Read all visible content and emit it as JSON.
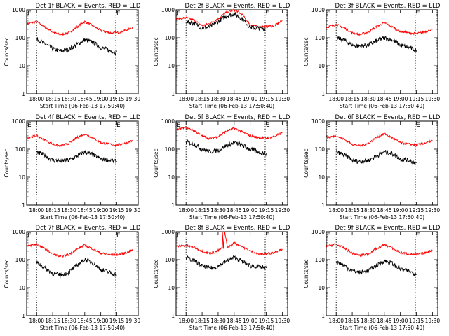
{
  "figure": {
    "common": {
      "ylabel": "Counts/sec",
      "xlabel": "Start Time (06-Feb-13 17:50:40)",
      "y_ticks": [
        "1",
        "10",
        "100",
        "1000"
      ],
      "x_ticks": [
        "18:00",
        "18:15",
        "18:30",
        "18:45",
        "19:00",
        "19:15",
        "19:30"
      ],
      "markers": {
        "left": "E",
        "right": "E"
      },
      "colors": {
        "events": "#000000",
        "lld": "#ff0000"
      }
    }
  },
  "chart_data": [
    {
      "type": "line",
      "detector": "1f",
      "title": "Det 1f BLACK = Events, RED = LLD",
      "ylabel": "Counts/sec",
      "xlabel": "Start Time (06-Feb-13 17:50:40)",
      "y_scale": "log",
      "ylim": [
        1,
        1000
      ],
      "xlim": [
        "17:50:40",
        "19:35:00"
      ],
      "dotted_verticals": [
        "18:00",
        "19:14"
      ],
      "series": [
        {
          "name": "LLD",
          "color": "#ff0000",
          "x": [
            "17:51",
            "18:00",
            "18:08",
            "18:15",
            "18:22",
            "18:30",
            "18:37",
            "18:45",
            "18:52",
            "19:00",
            "19:08",
            "19:15",
            "19:22",
            "19:30"
          ],
          "values": [
            320,
            380,
            240,
            160,
            130,
            150,
            230,
            380,
            280,
            180,
            150,
            150,
            180,
            230
          ]
        },
        {
          "name": "Events",
          "color": "#000000",
          "x": [
            "18:00",
            "18:08",
            "18:15",
            "18:22",
            "18:30",
            "18:37",
            "18:45",
            "18:52",
            "19:00",
            "19:08",
            "19:15"
          ],
          "values": [
            90,
            60,
            40,
            34,
            38,
            55,
            85,
            70,
            45,
            35,
            30
          ]
        }
      ]
    },
    {
      "type": "line",
      "detector": "2f",
      "title": "Det 2f BLACK = Events, RED = LLD",
      "ylabel": "Counts/sec",
      "xlabel": "Start Time (06-Feb-13 17:50:40)",
      "y_scale": "log",
      "ylim": [
        1,
        1000
      ],
      "xlim": [
        "17:50:40",
        "19:35:00"
      ],
      "dotted_verticals": [
        "18:00",
        "19:14"
      ],
      "series": [
        {
          "name": "LLD",
          "color": "#ff0000",
          "x": [
            "17:51",
            "18:00",
            "18:08",
            "18:15",
            "18:22",
            "18:30",
            "18:37",
            "18:45",
            "18:52",
            "19:00",
            "19:08",
            "19:15",
            "19:22",
            "19:30"
          ],
          "values": [
            480,
            520,
            420,
            270,
            320,
            480,
            780,
            1000,
            700,
            300,
            250,
            250,
            270,
            400
          ]
        },
        {
          "name": "Events",
          "color": "#000000",
          "x": [
            "18:00",
            "18:08",
            "18:15",
            "18:22",
            "18:30",
            "18:37",
            "18:45",
            "18:52",
            "19:00",
            "19:08",
            "19:15"
          ],
          "values": [
            360,
            330,
            220,
            240,
            380,
            580,
            720,
            500,
            240,
            220,
            210
          ]
        }
      ]
    },
    {
      "type": "line",
      "detector": "3f",
      "title": "Det 3f BLACK = Events, RED = LLD",
      "ylabel": "Counts/sec",
      "xlabel": "Start Time (06-Feb-13 17:50:40)",
      "y_scale": "log",
      "ylim": [
        1,
        1000
      ],
      "xlim": [
        "17:50:40",
        "19:35:00"
      ],
      "dotted_verticals": [
        "18:00",
        "19:14"
      ],
      "series": [
        {
          "name": "LLD",
          "color": "#ff0000",
          "x": [
            "17:51",
            "18:00",
            "18:08",
            "18:15",
            "18:22",
            "18:30",
            "18:37",
            "18:45",
            "18:52",
            "19:00",
            "19:08",
            "19:15",
            "19:22",
            "19:30"
          ],
          "values": [
            240,
            300,
            220,
            150,
            130,
            160,
            240,
            350,
            250,
            170,
            150,
            140,
            160,
            200
          ]
        },
        {
          "name": "Events",
          "color": "#000000",
          "x": [
            "18:00",
            "18:08",
            "18:15",
            "18:22",
            "18:30",
            "18:37",
            "18:45",
            "18:52",
            "19:00",
            "19:08",
            "19:15"
          ],
          "values": [
            100,
            80,
            55,
            50,
            55,
            75,
            100,
            85,
            55,
            45,
            35
          ]
        }
      ]
    },
    {
      "type": "line",
      "detector": "4f",
      "title": "Det 4f BLACK = Events, RED = LLD",
      "ylabel": "Counts/sec",
      "xlabel": "Start Time (06-Feb-13 17:50:40)",
      "y_scale": "log",
      "ylim": [
        1,
        1000
      ],
      "xlim": [
        "17:50:40",
        "19:35:00"
      ],
      "dotted_verticals": [
        "18:00",
        "19:14"
      ],
      "series": [
        {
          "name": "LLD",
          "color": "#ff0000",
          "x": [
            "17:51",
            "18:00",
            "18:08",
            "18:15",
            "18:22",
            "18:30",
            "18:37",
            "18:45",
            "18:52",
            "19:00",
            "19:08",
            "19:15",
            "19:22",
            "19:30"
          ],
          "values": [
            260,
            300,
            210,
            150,
            130,
            160,
            250,
            350,
            260,
            170,
            150,
            140,
            160,
            200
          ]
        },
        {
          "name": "Events",
          "color": "#000000",
          "x": [
            "18:00",
            "18:08",
            "18:15",
            "18:22",
            "18:30",
            "18:37",
            "18:45",
            "18:52",
            "19:00",
            "19:08",
            "19:15"
          ],
          "values": [
            80,
            60,
            40,
            38,
            40,
            55,
            80,
            65,
            45,
            40,
            35
          ]
        }
      ]
    },
    {
      "type": "line",
      "detector": "5f",
      "title": "Det 5f BLACK = Events, RED = LLD",
      "ylabel": "Counts/sec",
      "xlabel": "Start Time (06-Feb-13 17:50:40)",
      "y_scale": "log",
      "ylim": [
        1,
        1000
      ],
      "xlim": [
        "17:50:40",
        "19:35:00"
      ],
      "dotted_verticals": [
        "18:00",
        "19:14"
      ],
      "series": [
        {
          "name": "LLD",
          "color": "#ff0000",
          "x": [
            "17:51",
            "18:00",
            "18:08",
            "18:15",
            "18:22",
            "18:30",
            "18:37",
            "18:45",
            "18:52",
            "19:00",
            "19:08",
            "19:15",
            "19:22",
            "19:30"
          ],
          "values": [
            500,
            600,
            450,
            300,
            240,
            280,
            420,
            560,
            420,
            300,
            260,
            250,
            280,
            380
          ]
        },
        {
          "name": "Events",
          "color": "#000000",
          "x": [
            "18:00",
            "18:08",
            "18:15",
            "18:22",
            "18:30",
            "18:37",
            "18:45",
            "18:52",
            "19:00",
            "19:08",
            "19:15"
          ],
          "values": [
            180,
            150,
            100,
            80,
            90,
            130,
            170,
            140,
            100,
            80,
            70
          ]
        }
      ]
    },
    {
      "type": "line",
      "detector": "6f",
      "title": "Det 6f BLACK = Events, RED = LLD",
      "ylabel": "Counts/sec",
      "xlabel": "Start Time (06-Feb-13 17:50:40)",
      "y_scale": "log",
      "ylim": [
        1,
        1000
      ],
      "xlim": [
        "17:50:40",
        "19:35:00"
      ],
      "dotted_verticals": [
        "18:00",
        "19:14"
      ],
      "series": [
        {
          "name": "LLD",
          "color": "#ff0000",
          "x": [
            "17:51",
            "18:00",
            "18:08",
            "18:15",
            "18:22",
            "18:30",
            "18:37",
            "18:45",
            "18:52",
            "19:00",
            "19:08",
            "19:15",
            "19:22",
            "19:30"
          ],
          "values": [
            260,
            300,
            220,
            150,
            130,
            160,
            250,
            360,
            260,
            170,
            150,
            140,
            160,
            200
          ]
        },
        {
          "name": "Events",
          "color": "#000000",
          "x": [
            "18:00",
            "18:08",
            "18:15",
            "18:22",
            "18:30",
            "18:37",
            "18:45",
            "18:52",
            "19:00",
            "19:08",
            "19:15"
          ],
          "values": [
            80,
            60,
            40,
            36,
            40,
            55,
            80,
            70,
            45,
            40,
            32
          ]
        }
      ]
    },
    {
      "type": "line",
      "detector": "7f",
      "title": "Det 7f BLACK = Events, RED = LLD",
      "ylabel": "Counts/sec",
      "xlabel": "Start Time (06-Feb-13 17:50:40)",
      "y_scale": "log",
      "ylim": [
        1,
        1000
      ],
      "xlim": [
        "17:50:40",
        "19:35:00"
      ],
      "dotted_verticals": [
        "18:00",
        "19:14"
      ],
      "series": [
        {
          "name": "LLD",
          "color": "#ff0000",
          "x": [
            "17:51",
            "18:00",
            "18:08",
            "18:15",
            "18:22",
            "18:30",
            "18:37",
            "18:45",
            "18:52",
            "19:00",
            "19:08",
            "19:15",
            "19:22",
            "19:30"
          ],
          "values": [
            300,
            360,
            240,
            160,
            130,
            150,
            230,
            330,
            250,
            170,
            150,
            150,
            170,
            220
          ]
        },
        {
          "name": "Events",
          "color": "#000000",
          "x": [
            "18:00",
            "18:08",
            "18:15",
            "18:22",
            "18:30",
            "18:37",
            "18:45",
            "18:52",
            "19:00",
            "19:08",
            "19:15"
          ],
          "values": [
            80,
            50,
            32,
            28,
            35,
            60,
            100,
            80,
            45,
            35,
            28
          ]
        }
      ]
    },
    {
      "type": "line",
      "detector": "8f",
      "title": "Det 8f BLACK = Events, RED = LLD",
      "ylabel": "Counts/sec",
      "xlabel": "Start Time (06-Feb-13 17:50:40)",
      "y_scale": "log",
      "ylim": [
        1,
        1000
      ],
      "xlim": [
        "17:50:40",
        "19:35:00"
      ],
      "dotted_verticals": [
        "18:00",
        "19:14"
      ],
      "series": [
        {
          "name": "LLD",
          "color": "#ff0000",
          "x": [
            "17:51",
            "18:00",
            "18:08",
            "18:15",
            "18:22",
            "18:28",
            "18:34",
            "18:34",
            "18:35",
            "18:36",
            "18:39",
            "18:42",
            "18:45",
            "18:52",
            "19:00",
            "19:08",
            "19:15",
            "19:22",
            "19:30"
          ],
          "values": [
            300,
            320,
            270,
            200,
            170,
            190,
            260,
            1000,
            250,
            1000,
            260,
            330,
            400,
            300,
            200,
            160,
            160,
            180,
            240
          ]
        },
        {
          "name": "Events",
          "color": "#000000",
          "x": [
            "18:00",
            "18:08",
            "18:15",
            "18:22",
            "18:28",
            "18:38",
            "18:45",
            "18:52",
            "19:00",
            "19:08",
            "19:15"
          ],
          "values": [
            120,
            90,
            60,
            50,
            52,
            90,
            120,
            90,
            60,
            55,
            50
          ]
        }
      ]
    },
    {
      "type": "line",
      "detector": "9f",
      "title": "Det 9f BLACK = Events, RED = LLD",
      "ylabel": "Counts/sec",
      "xlabel": "Start Time (06-Feb-13 17:50:40)",
      "y_scale": "log",
      "ylim": [
        1,
        1000
      ],
      "xlim": [
        "17:50:40",
        "19:35:00"
      ],
      "dotted_verticals": [
        "18:00",
        "19:14"
      ],
      "series": [
        {
          "name": "LLD",
          "color": "#ff0000",
          "x": [
            "17:51",
            "18:00",
            "18:08",
            "18:15",
            "18:22",
            "18:30",
            "18:37",
            "18:45",
            "18:52",
            "19:00",
            "19:08",
            "19:15",
            "19:22",
            "19:30"
          ],
          "values": [
            300,
            360,
            250,
            170,
            140,
            160,
            240,
            340,
            260,
            180,
            160,
            150,
            170,
            220
          ]
        },
        {
          "name": "Events",
          "color": "#000000",
          "x": [
            "18:00",
            "18:08",
            "18:15",
            "18:22",
            "18:30",
            "18:37",
            "18:45",
            "18:52",
            "19:00",
            "19:08",
            "19:15"
          ],
          "values": [
            85,
            60,
            40,
            35,
            40,
            60,
            90,
            75,
            45,
            38,
            30
          ]
        }
      ]
    }
  ]
}
